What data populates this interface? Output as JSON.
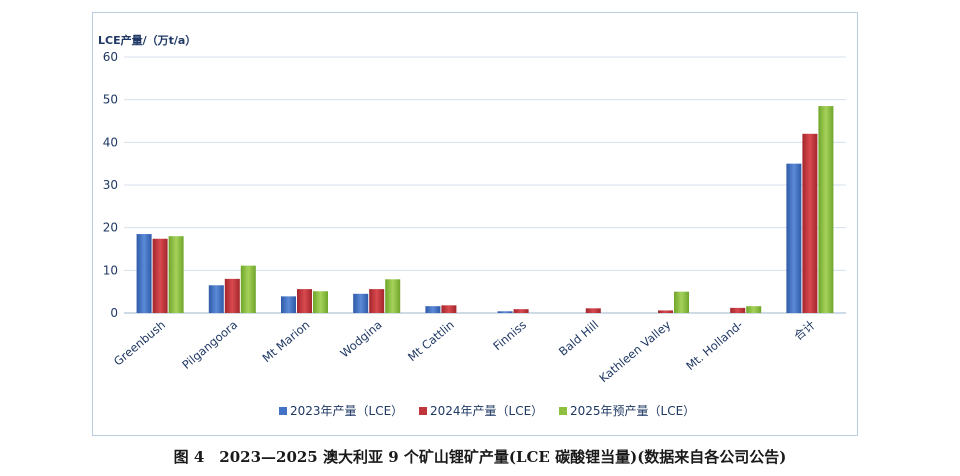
{
  "chart_data": {
    "type": "bar",
    "ylabel": "LCE产量/（万t/a）",
    "ylim": [
      0,
      60
    ],
    "yticks": [
      0,
      10,
      20,
      30,
      40,
      50,
      60
    ],
    "grid": true,
    "legend_position": "bottom",
    "categories": [
      "Greenbush",
      "Pilgangoora",
      "Mt Marion",
      "Wodgina",
      "Mt Cattlin",
      "Finniss",
      "Bald Hill",
      "Kathleen Valley",
      "Mt. Holland-",
      "合计"
    ],
    "series": [
      {
        "name": "2023年产量（LCE）",
        "color": "#4472c4",
        "values": [
          18.5,
          6.5,
          3.9,
          4.5,
          1.6,
          0.4,
          0,
          0,
          0,
          35
        ]
      },
      {
        "name": "2024年产量（LCE）",
        "color": "#c0353a",
        "values": [
          17.4,
          8.0,
          5.6,
          5.6,
          1.8,
          0.9,
          1.1,
          0.6,
          1.2,
          42
        ]
      },
      {
        "name": "2025年预产量（LCE）",
        "color": "#8fbf3f",
        "values": [
          18.0,
          11.1,
          5.1,
          7.9,
          0,
          0,
          0,
          5.0,
          1.6,
          48.5
        ]
      }
    ]
  },
  "caption": "图 4　2023—2025 澳大利亚 9 个矿山锂矿产量(LCE 碳酸锂当量)(数据来自各公司公告)"
}
